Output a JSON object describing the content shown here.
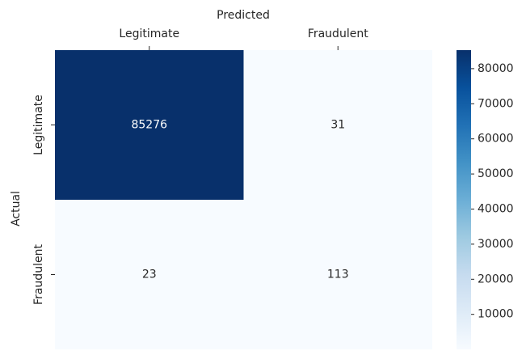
{
  "chart_data": {
    "type": "heatmap",
    "xlabel": "Predicted",
    "ylabel": "Actual",
    "x_categories": [
      "Legitimate",
      "Fraudulent"
    ],
    "y_categories": [
      "Legitimate",
      "Fraudulent"
    ],
    "values": [
      [
        85276,
        31
      ],
      [
        23,
        113
      ]
    ],
    "colormap": [
      "#f7fbff",
      "#deebf7",
      "#c6dbef",
      "#9ecae1",
      "#6baed6",
      "#4292c6",
      "#2171b5",
      "#08519c",
      "#08306b"
    ],
    "clim": [
      23,
      85276
    ],
    "cticks": [
      10000,
      20000,
      30000,
      40000,
      50000,
      60000,
      70000,
      80000
    ]
  }
}
